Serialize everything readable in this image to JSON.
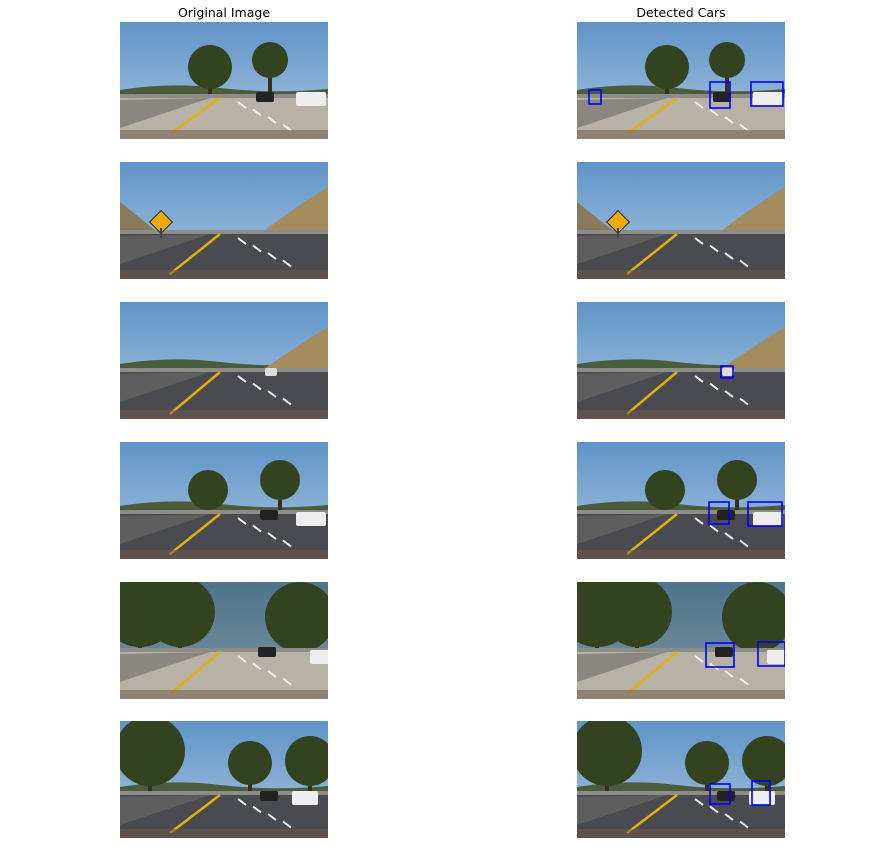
{
  "titles": {
    "left": "Original Image",
    "right": "Detected Cars"
  },
  "colors": {
    "sky": "#5f93c7",
    "sky_light": "#a9c6e0",
    "road_light": "#b7b1a6",
    "road_dark": "#4a4b50",
    "lane_yellow": "#e2b10f",
    "detection_box": "#0000ff"
  },
  "panels": [
    {
      "row": 1,
      "left": "original-frame-1",
      "right": "detected-frame-1",
      "detections": 3
    },
    {
      "row": 2,
      "left": "original-frame-2",
      "right": "detected-frame-2",
      "detections": 0
    },
    {
      "row": 3,
      "left": "original-frame-3",
      "right": "detected-frame-3",
      "detections": 1
    },
    {
      "row": 4,
      "left": "original-frame-4",
      "right": "detected-frame-4",
      "detections": 2
    },
    {
      "row": 5,
      "left": "original-frame-5",
      "right": "detected-frame-5",
      "detections": 2
    },
    {
      "row": 6,
      "left": "original-frame-6",
      "right": "detected-frame-6",
      "detections": 2
    }
  ]
}
